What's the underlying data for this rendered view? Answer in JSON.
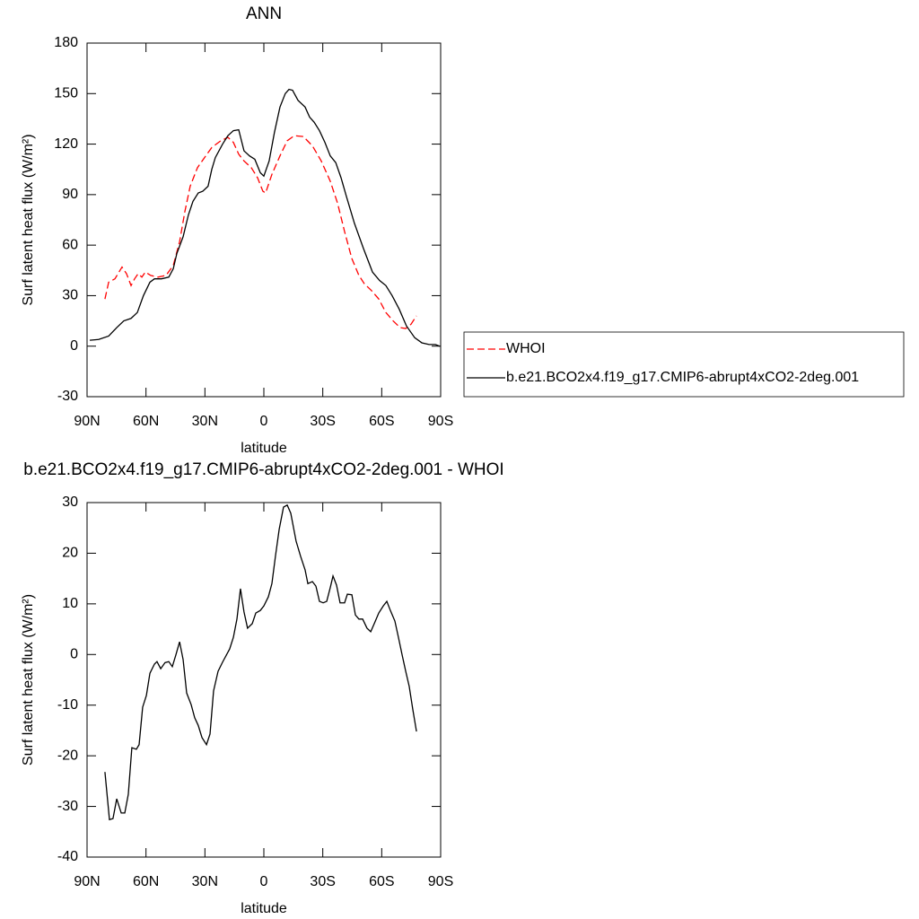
{
  "chart_data": [
    {
      "type": "line",
      "title": "ANN",
      "x_label": "latitude",
      "y_label": "Surf latent heat flux (W/m²)",
      "xlim": [
        90,
        -90
      ],
      "xticks": [
        {
          "value": 90,
          "label": "90N"
        },
        {
          "value": 60,
          "label": "60N"
        },
        {
          "value": 30,
          "label": "30N"
        },
        0,
        {
          "value": -30,
          "label": "30S"
        },
        {
          "value": -60,
          "label": "60S"
        },
        {
          "value": -90,
          "label": "90S"
        }
      ],
      "ylim": [
        -30,
        180
      ],
      "yticks": [
        -30,
        0,
        30,
        60,
        90,
        120,
        150,
        180
      ],
      "legend": "right",
      "series": [
        {
          "name": "WHOI",
          "color": "#ff0000",
          "dash": "dashed",
          "x": [
            80.9,
            79.0,
            75.8,
            72.2,
            69.9,
            67.6,
            65.8,
            64.0,
            62.1,
            60.3,
            57.6,
            53.9,
            49.8,
            46.1,
            42.9,
            40.2,
            37.5,
            33.8,
            30.2,
            26.5,
            21.9,
            18.3,
            15.5,
            12.8,
            10.1,
            6.4,
            3.2,
            0.5,
            -0.9,
            -4.1,
            -8.2,
            -11.9,
            -15.5,
            -20.1,
            -24.7,
            -29.2,
            -33.8,
            -37.5,
            -41.1,
            -44.8,
            -48.4,
            -51.2,
            -54.8,
            -58.5,
            -62.1,
            -65.8,
            -69.4,
            -72.2,
            -74.9,
            -77.7
          ],
          "values": [
            28,
            38,
            40,
            47,
            43,
            36,
            40,
            43,
            41,
            44,
            42,
            41,
            42,
            48,
            62,
            80,
            95,
            106,
            112,
            118,
            122,
            124,
            121,
            114,
            110,
            106,
            100,
            92,
            91,
            102,
            113,
            122,
            125,
            124.5,
            119,
            110,
            98,
            85,
            68,
            52,
            42,
            37,
            33,
            28,
            20,
            15,
            11,
            10.5,
            13,
            18
          ]
        },
        {
          "name": "b.e21.BCO2x4.f19_g17.CMIP6-abrupt4xCO2-2deg.001",
          "color": "#000000",
          "dash": "solid",
          "x": [
            88.6,
            84.1,
            79.0,
            74.9,
            71.3,
            67.6,
            64.4,
            61.3,
            58.0,
            55.7,
            52.1,
            48.4,
            46.1,
            44.3,
            41.1,
            38.4,
            36.1,
            33.4,
            31.1,
            28.4,
            26.5,
            24.7,
            21.0,
            18.3,
            15.5,
            12.8,
            10.1,
            7.3,
            4.6,
            1.8,
            0,
            -2.7,
            -5.4,
            -8.2,
            -10.9,
            -12.8,
            -14.6,
            -17.4,
            -21.0,
            -23.3,
            -25.6,
            -28.3,
            -31.1,
            -33.8,
            -36.6,
            -39.3,
            -42.0,
            -46.1,
            -50.7,
            -55.3,
            -58.9,
            -62.1,
            -65.3,
            -68.9,
            -72.6,
            -76.8,
            -80.4,
            -84.1,
            -87.3,
            -89.5
          ],
          "values": [
            3.5,
            4,
            6,
            11,
            15,
            16.5,
            20,
            30,
            38,
            40,
            40,
            41,
            46,
            55,
            65,
            78,
            86,
            91,
            92,
            95,
            105,
            112,
            120,
            125,
            128,
            128.5,
            116,
            113,
            111,
            103,
            101,
            110,
            127,
            142,
            150,
            152.5,
            152,
            146,
            142,
            136,
            133,
            128,
            121,
            113,
            109,
            100,
            89,
            73,
            58,
            44,
            39,
            36,
            30,
            22,
            12,
            5,
            2,
            1,
            1,
            0
          ]
        }
      ]
    },
    {
      "type": "line",
      "title": "b.e21.BCO2x4.f19_g17.CMIP6-abrupt4xCO2-2deg.001 - WHOI",
      "x_label": "latitude",
      "y_label": "Surf latent heat flux (W/m²)",
      "xlim": [
        90,
        -90
      ],
      "xticks": [
        {
          "value": 90,
          "label": "90N"
        },
        {
          "value": 60,
          "label": "60N"
        },
        {
          "value": 30,
          "label": "30N"
        },
        0,
        {
          "value": -30,
          "label": "30S"
        },
        {
          "value": -60,
          "label": "60S"
        },
        {
          "value": -90,
          "label": "90S"
        }
      ],
      "ylim": [
        -40,
        30
      ],
      "yticks": [
        -40,
        -30,
        -20,
        -10,
        0,
        10,
        20,
        30
      ],
      "series": [
        {
          "color": "#000000",
          "dash": "solid",
          "x": [
            80.9,
            78.6,
            76.8,
            74.9,
            72.6,
            70.8,
            69.0,
            67.2,
            64.9,
            63.5,
            61.7,
            59.8,
            58.0,
            55.7,
            54.4,
            52.5,
            50.3,
            48.4,
            46.6,
            44.8,
            42.9,
            41.1,
            39.3,
            37.0,
            35.2,
            33.4,
            31.5,
            29.2,
            27.4,
            25.6,
            23.3,
            21.0,
            17.4,
            15.5,
            13.7,
            11.9,
            10.1,
            8.3,
            5.9,
            4.1,
            1.8,
            0,
            -2.3,
            -4.1,
            -5.9,
            -7.8,
            -10.0,
            -11.9,
            -13.7,
            -16.4,
            -18.7,
            -21.0,
            -22.4,
            -24.7,
            -26.5,
            -28.3,
            -30.2,
            -32.0,
            -33.8,
            -35.2,
            -37.0,
            -38.8,
            -41.1,
            -42.5,
            -44.8,
            -46.6,
            -48.4,
            -50.3,
            -52.5,
            -54.4,
            -56.2,
            -58.5,
            -60.8,
            -62.6,
            -64.4,
            -66.7,
            -68.5,
            -70.4,
            -72.2,
            -74.0,
            -75.8,
            -77.7
          ],
          "values": [
            -23.2,
            -32.6,
            -32.4,
            -28.5,
            -31.3,
            -31.3,
            -27.6,
            -18.4,
            -18.7,
            -17.8,
            -10.4,
            -8.1,
            -3.7,
            -1.9,
            -1.4,
            -2.8,
            -1.6,
            -1.4,
            -2.4,
            -0.1,
            2.5,
            -1,
            -7.6,
            -9.9,
            -12.5,
            -14,
            -16.4,
            -17.8,
            -15.7,
            -7.2,
            -3.3,
            -1.5,
            1.1,
            3.4,
            7,
            13,
            8.4,
            5.2,
            6.1,
            8.2,
            8.7,
            9.6,
            11.4,
            14,
            19.4,
            24.7,
            29.1,
            29.5,
            27.9,
            22.4,
            19.4,
            16.7,
            14,
            14.4,
            13.5,
            10.5,
            10.2,
            10.5,
            13.2,
            15.5,
            13.7,
            10.2,
            10.2,
            11.9,
            11.8,
            7.8,
            7,
            7,
            5.2,
            4.5,
            6.1,
            8.2,
            9.6,
            10.5,
            8.7,
            6.6,
            3.4,
            -0.1,
            -3.3,
            -6.3,
            -10.8,
            -15.2
          ]
        }
      ]
    }
  ]
}
